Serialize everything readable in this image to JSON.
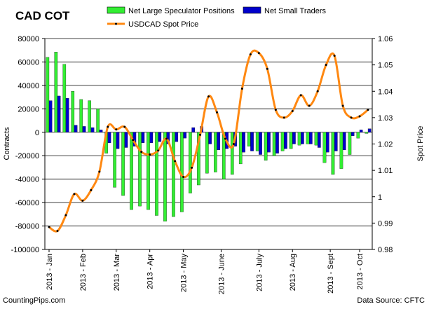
{
  "chart_data": {
    "type": "bar+line",
    "title": "CAD COT",
    "ylabel_left": "Contracts",
    "ylabel_right": "Spot Price",
    "ylim_left": [
      -100000,
      80000
    ],
    "yticks_left": [
      80000,
      60000,
      40000,
      20000,
      0,
      -20000,
      -40000,
      -60000,
      -80000,
      -100000
    ],
    "ylim_right": [
      0.98,
      1.06
    ],
    "yticks_right": [
      "1.06",
      "1.05",
      "1.04",
      "1.03",
      "1.02",
      "1.01",
      "1",
      "0.99",
      "0.98"
    ],
    "grid": true,
    "legend_position": "top",
    "x_tick_labels": [
      {
        "label": "2013 - Jan",
        "week": 0
      },
      {
        "label": "2013 - Feb",
        "week": 4
      },
      {
        "label": "2013 - Mar",
        "week": 8
      },
      {
        "label": "2013 - Apr",
        "week": 12
      },
      {
        "label": "2013 - May",
        "week": 16
      },
      {
        "label": "2013 - June",
        "week": 20.5
      },
      {
        "label": "2013 - July",
        "week": 25
      },
      {
        "label": "2013 - Aug",
        "week": 29
      },
      {
        "label": "2013 - Sept",
        "week": 33.5
      },
      {
        "label": "2013 - Oct",
        "week": 37
      }
    ],
    "series": [
      {
        "name": "Net Large Speculator Positions",
        "type": "bar",
        "color": "#33ee33",
        "values": [
          64000,
          68500,
          58000,
          35000,
          28000,
          27000,
          20000,
          -18000,
          -47000,
          -54000,
          -66000,
          -63000,
          -66000,
          -71000,
          -76000,
          -72000,
          -68000,
          -52000,
          -45000,
          -35000,
          -34000,
          -40000,
          -36000,
          -27000,
          -12000,
          -16000,
          -24000,
          -20000,
          -16000,
          -14000,
          -11000,
          -10000,
          -11000,
          -26000,
          -36000,
          -31000,
          -19000,
          -5000,
          -1000
        ]
      },
      {
        "name": "Net Small Traders",
        "type": "bar",
        "color": "#0000cc",
        "values": [
          27000,
          31000,
          29000,
          6000,
          5000,
          4000,
          2000,
          -9000,
          -14000,
          -13000,
          -12000,
          -9000,
          -9000,
          -8000,
          -10000,
          -8000,
          -5000,
          4000,
          5000,
          -10000,
          -15000,
          -14000,
          -12000,
          -17000,
          -16000,
          -19000,
          -17000,
          -18000,
          -14000,
          -10000,
          -10000,
          -10000,
          -13000,
          -17000,
          -16000,
          -15000,
          -3000,
          2000,
          3000
        ]
      },
      {
        "name": "USDCAD Spot Price",
        "type": "line",
        "color": "#ff8811",
        "values": [
          0.9885,
          0.987,
          0.993,
          1.001,
          0.9985,
          1.0025,
          1.0095,
          1.0265,
          1.0255,
          1.0265,
          1.0215,
          1.017,
          1.016,
          1.0175,
          1.022,
          1.0135,
          1.0075,
          1.011,
          1.0235,
          1.038,
          1.032,
          1.022,
          1.02,
          1.041,
          1.054,
          1.0545,
          1.0485,
          1.033,
          1.03,
          1.0325,
          1.0385,
          1.0345,
          1.04,
          1.05,
          1.0535,
          1.0345,
          1.03,
          1.0305,
          1.033
        ]
      }
    ]
  },
  "footer": {
    "left": "CountingPips.com",
    "right": "Data Source: CFTC"
  }
}
